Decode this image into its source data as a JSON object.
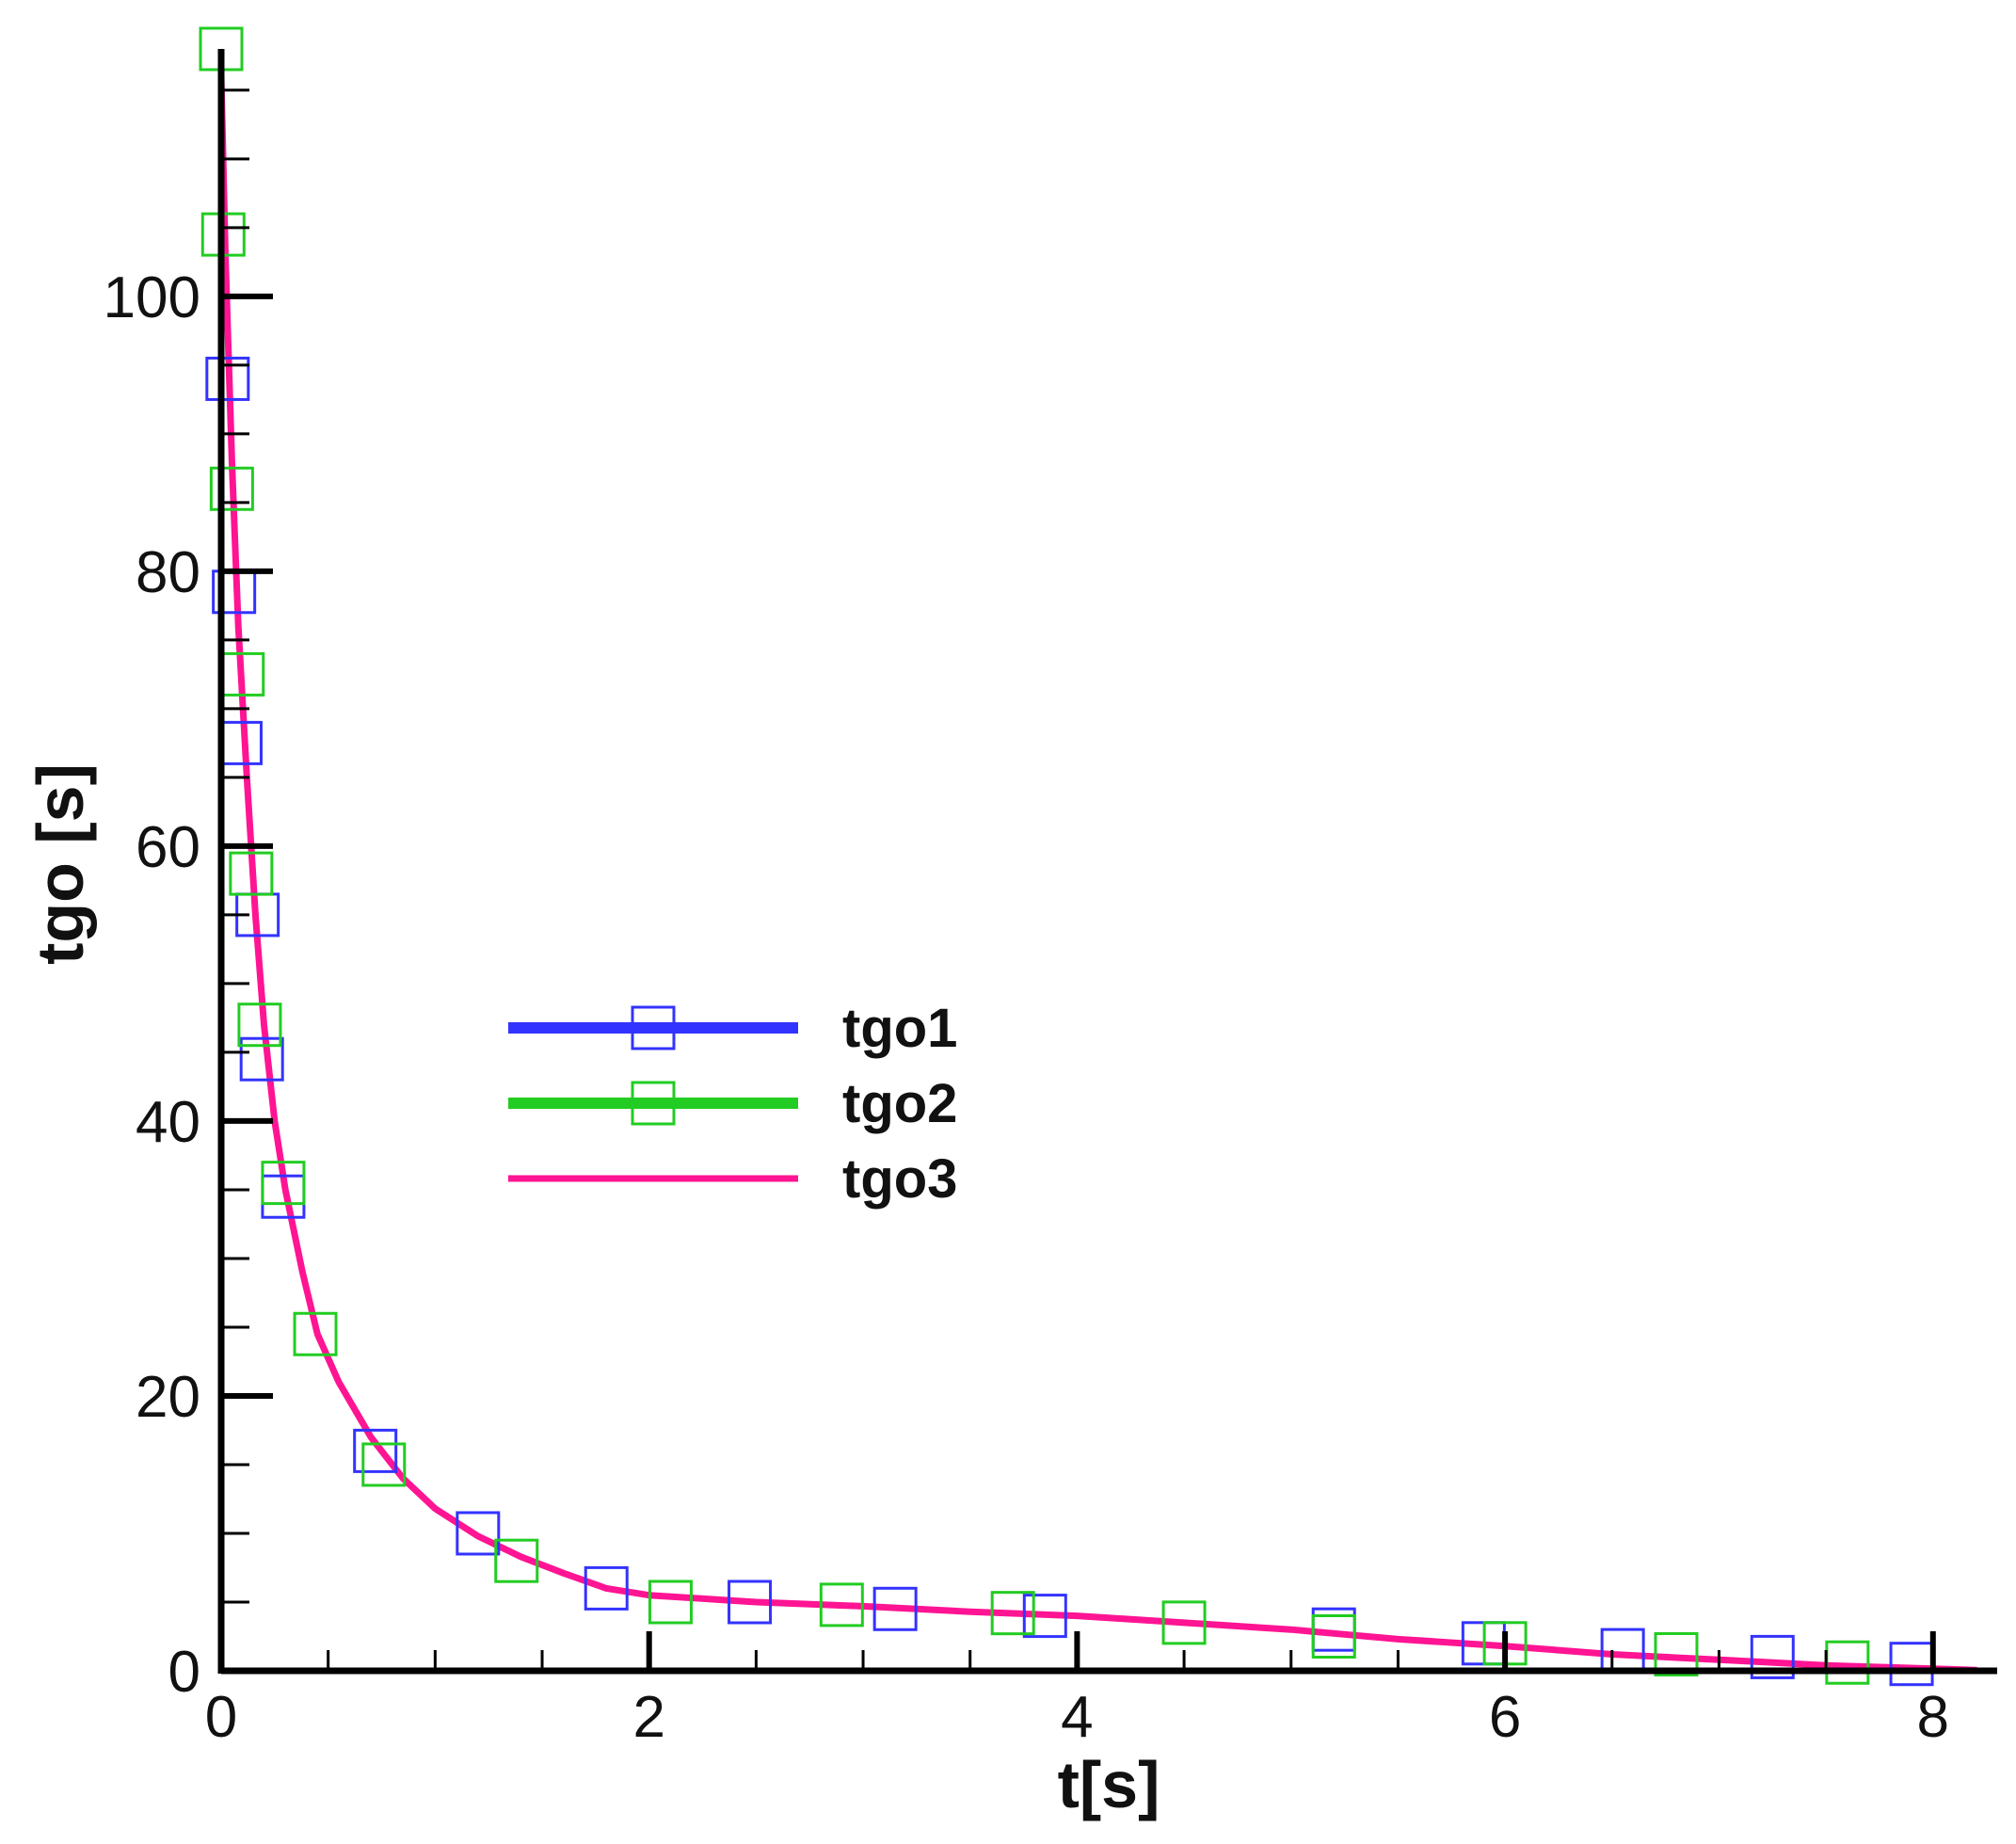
{
  "chart_data": {
    "type": "line",
    "title": "",
    "xlabel": "t[s]",
    "ylabel": "tgo [s]",
    "xlim": [
      0,
      8.3
    ],
    "ylim": [
      0,
      118
    ],
    "x_ticks": [
      0,
      2,
      4,
      6,
      8
    ],
    "y_ticks": [
      0,
      20,
      40,
      60,
      80,
      100
    ],
    "x_tick_labels": [
      "0",
      "2",
      "4",
      "6",
      "8"
    ],
    "y_tick_labels": [
      "0",
      "20",
      "40",
      "60",
      "80",
      "100"
    ],
    "grid": false,
    "legend": "center",
    "colors": {
      "tgo1": "#3333ff",
      "tgo2": "#22cc22",
      "tgo3": "#ff1493"
    },
    "series": [
      {
        "name": "tgo1",
        "marker": "square",
        "color": "#3333ff",
        "points": [
          [
            0.03,
            94
          ],
          [
            0.06,
            78.5
          ],
          [
            0.09,
            67.5
          ],
          [
            0.17,
            55
          ],
          [
            0.19,
            44.5
          ],
          [
            0.29,
            34.5
          ],
          [
            0.72,
            16
          ],
          [
            1.2,
            10
          ],
          [
            1.8,
            6
          ],
          [
            2.47,
            5
          ],
          [
            3.15,
            4.5
          ],
          [
            3.85,
            4
          ],
          [
            5.2,
            3
          ],
          [
            5.9,
            2
          ],
          [
            6.55,
            1.5
          ],
          [
            7.25,
            1
          ],
          [
            7.9,
            0.5
          ]
        ]
      },
      {
        "name": "tgo2",
        "marker": "square",
        "color": "#22cc22",
        "points": [
          [
            0.0,
            118
          ],
          [
            0.01,
            104.5
          ],
          [
            0.05,
            86
          ],
          [
            0.1,
            72.5
          ],
          [
            0.14,
            58
          ],
          [
            0.18,
            47
          ],
          [
            0.29,
            35.5
          ],
          [
            0.44,
            24.5
          ],
          [
            0.76,
            15
          ],
          [
            1.38,
            8
          ],
          [
            2.1,
            5
          ],
          [
            2.9,
            4.8
          ],
          [
            3.7,
            4.2
          ],
          [
            4.5,
            3.5
          ],
          [
            5.2,
            2.5
          ],
          [
            6.0,
            2
          ],
          [
            6.8,
            1.2
          ],
          [
            7.6,
            0.6
          ]
        ]
      },
      {
        "name": "tgo3",
        "marker": "none",
        "color": "#ff1493",
        "points": [
          [
            0.0,
            116
          ],
          [
            0.02,
            103
          ],
          [
            0.05,
            88
          ],
          [
            0.08,
            76
          ],
          [
            0.12,
            65
          ],
          [
            0.16,
            55
          ],
          [
            0.2,
            47
          ],
          [
            0.25,
            40
          ],
          [
            0.3,
            35
          ],
          [
            0.38,
            29
          ],
          [
            0.45,
            24.5
          ],
          [
            0.55,
            21
          ],
          [
            0.7,
            17
          ],
          [
            0.85,
            14
          ],
          [
            1.0,
            11.8
          ],
          [
            1.2,
            9.8
          ],
          [
            1.4,
            8.3
          ],
          [
            1.6,
            7.1
          ],
          [
            1.8,
            6
          ],
          [
            2.0,
            5.5
          ],
          [
            2.5,
            5
          ],
          [
            3.0,
            4.7
          ],
          [
            3.5,
            4.3
          ],
          [
            4.0,
            4
          ],
          [
            4.5,
            3.5
          ],
          [
            5.0,
            3
          ],
          [
            5.5,
            2.3
          ],
          [
            6.0,
            1.8
          ],
          [
            6.5,
            1.2
          ],
          [
            7.0,
            0.8
          ],
          [
            7.5,
            0.4
          ],
          [
            8.0,
            0.15
          ],
          [
            8.2,
            0.05
          ]
        ]
      }
    ]
  }
}
